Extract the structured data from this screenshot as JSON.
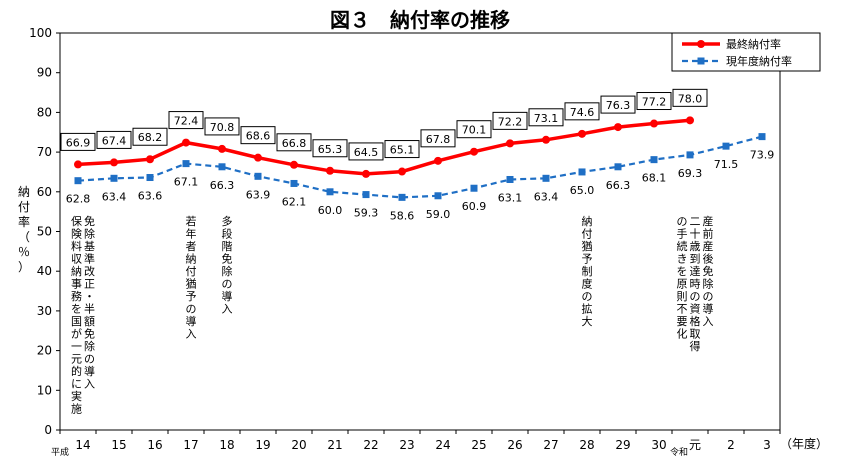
{
  "chart_data": {
    "type": "line",
    "title": "図３　納付率の推移",
    "ylabel": "納付率（％）",
    "xlabel": "（年度）",
    "ylim": [
      0,
      100
    ],
    "yticks": [
      "0",
      "10",
      "20",
      "30",
      "40",
      "50",
      "60",
      "70",
      "80",
      "90",
      "100"
    ],
    "era_labels": {
      "heisei": "平成",
      "reiwa": "令和"
    },
    "categories": [
      "14",
      "15",
      "16",
      "17",
      "18",
      "19",
      "20",
      "21",
      "22",
      "23",
      "24",
      "25",
      "26",
      "27",
      "28",
      "29",
      "30",
      "元",
      "2",
      "3"
    ],
    "series": [
      {
        "name": "最終納付率",
        "color": "#ff0000",
        "style": "solid",
        "values": [
          66.9,
          67.4,
          68.2,
          72.4,
          70.8,
          68.6,
          66.8,
          65.3,
          64.5,
          65.1,
          67.8,
          70.1,
          72.2,
          73.1,
          74.6,
          76.3,
          77.2,
          78.0,
          null,
          null
        ],
        "labels": [
          "66.9",
          "67.4",
          "68.2",
          "72.4",
          "70.8",
          "68.6",
          "66.8",
          "65.3",
          "64.5",
          "65.1",
          "67.8",
          "70.1",
          "72.2",
          "73.1",
          "74.6",
          "76.3",
          "77.2",
          "78.0",
          null,
          null
        ]
      },
      {
        "name": "現年度納付率",
        "color": "#1f6fc5",
        "style": "dashed",
        "values": [
          62.8,
          63.4,
          63.6,
          67.1,
          66.3,
          63.9,
          62.1,
          60.0,
          59.3,
          58.6,
          59.0,
          60.9,
          63.1,
          63.4,
          65.0,
          66.3,
          68.1,
          69.3,
          71.5,
          73.9
        ],
        "labels": [
          "62.8",
          "63.4",
          "63.6",
          "67.1",
          "66.3",
          "63.9",
          "62.1",
          "60.0",
          "59.3",
          "58.6",
          "59.0",
          "60.9",
          "63.1",
          "63.4",
          "65.0",
          "66.3",
          "68.1",
          "69.3",
          "71.5",
          "73.9"
        ]
      }
    ],
    "legend": "top-right",
    "annotations": [
      {
        "index": 0,
        "lines": [
          "免除基準改正・半額免除の導入",
          "保険料収納事務を国が一元的に実施"
        ]
      },
      {
        "index": 3,
        "lines": [
          "若年者納付猶予の導入"
        ]
      },
      {
        "index": 4,
        "lines": [
          "多段階免除の導入"
        ]
      },
      {
        "index": 14,
        "lines": [
          "納付猶予制度の拡大"
        ]
      },
      {
        "index": 17,
        "lines": [
          "産前産後免除の導入",
          "二十歳到達時の資格取得",
          "の手続きを原則不要化"
        ]
      }
    ]
  }
}
